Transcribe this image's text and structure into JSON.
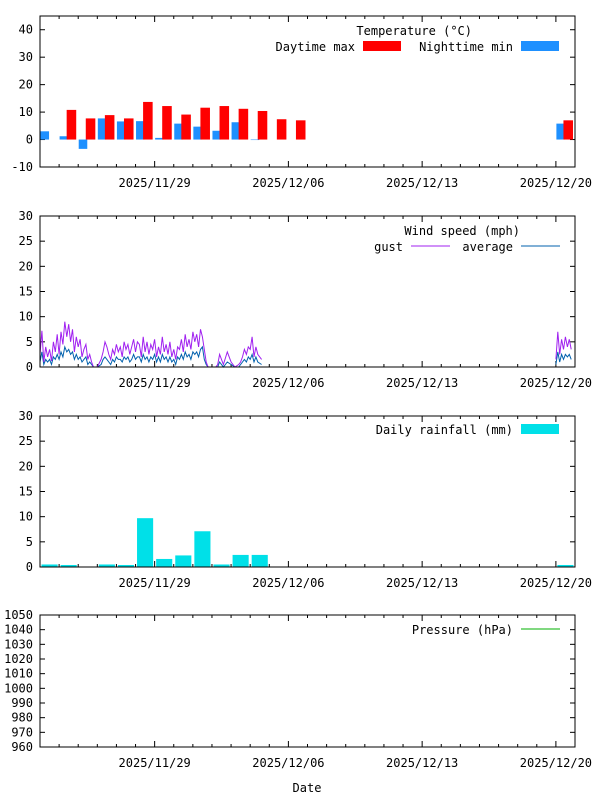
{
  "x_axis": {
    "ticks": [
      "2025/11/29",
      "2025/12/06",
      "2025/12/13",
      "2025/12/20"
    ],
    "label": "Date"
  },
  "colors": {
    "day_max": "#ff0000",
    "night_min": "#1e90ff",
    "gust": "#a020f0",
    "wind_avg": "#0060ad",
    "rain": "#00e0e8",
    "pressure": "#00b000"
  },
  "chart_data": [
    {
      "type": "bar",
      "title": "Temperature (°C)",
      "ylim": [
        -10,
        45
      ],
      "yticks": [
        "40",
        "30",
        "20",
        "10",
        "0",
        "-10"
      ],
      "series": [
        {
          "name": "Daytime max",
          "days": [
            1,
            2,
            3,
            4,
            5,
            6,
            7,
            8,
            9,
            10,
            11,
            12,
            13,
            27
          ],
          "values": [
            10.8,
            7.7,
            8.9,
            7.7,
            13.7,
            12.2,
            9.1,
            11.6,
            12.2,
            11.2,
            10.4,
            7.4,
            7.0,
            7.0
          ]
        },
        {
          "name": "Nighttime min",
          "days": [
            0,
            1,
            2,
            3,
            4,
            5,
            6,
            7,
            8,
            9,
            10,
            11,
            27
          ],
          "values": [
            3.0,
            1.2,
            -3.4,
            7.7,
            6.6,
            6.7,
            0.6,
            5.8,
            4.7,
            3.2,
            6.3,
            0.0,
            5.8
          ]
        }
      ]
    },
    {
      "type": "line",
      "title": "Wind speed (mph)",
      "ylim": [
        0,
        30
      ],
      "yticks": [
        "30",
        "25",
        "20",
        "15",
        "10",
        "5",
        "0"
      ],
      "series": [
        {
          "name": "gust",
          "x": [
            0,
            0.1,
            0.2,
            0.3,
            0.4,
            0.5,
            0.6,
            0.7,
            0.8,
            0.9,
            1.0,
            1.1,
            1.2,
            1.3,
            1.4,
            1.5,
            1.6,
            1.7,
            1.8,
            1.9,
            2.0,
            2.1,
            2.2,
            2.3,
            2.4,
            2.5,
            2.6,
            2.7,
            2.8,
            3.0,
            3.2,
            3.3,
            3.4,
            3.5,
            3.6,
            3.7,
            3.8,
            3.9,
            4.0,
            4.1,
            4.2,
            4.3,
            4.4,
            4.5,
            4.6,
            4.7,
            4.8,
            4.9,
            5.0,
            5.1,
            5.2,
            5.3,
            5.4,
            5.5,
            5.6,
            5.7,
            5.8,
            5.9,
            6.0,
            6.1,
            6.2,
            6.3,
            6.4,
            6.5,
            6.6,
            6.7,
            6.8,
            6.9,
            7.0,
            7.1,
            7.2,
            7.3,
            7.4,
            7.5,
            7.6,
            7.7,
            7.8,
            7.9,
            8.0,
            8.1,
            8.2,
            8.3,
            8.4,
            8.5,
            8.6,
            8.7,
            8.8,
            8.9,
            9.0,
            9.1,
            9.2,
            9.3,
            9.4,
            9.6,
            9.8,
            10.0,
            10.2,
            10.4,
            10.5,
            10.6,
            10.7,
            10.8,
            10.9,
            11.0,
            11.1,
            11.2,
            11.3,
            11.4,
            11.6
          ],
          "values": [
            2.5,
            7.2,
            1.0,
            4.0,
            2.0,
            3.5,
            1.2,
            5.0,
            3.0,
            6.5,
            2.5,
            7.0,
            4.5,
            9.0,
            6.0,
            8.5,
            5.0,
            7.5,
            3.0,
            6.0,
            4.0,
            5.5,
            2.0,
            3.5,
            4.5,
            1.5,
            2.5,
            1.0,
            0.0,
            0.0,
            1.5,
            3.0,
            5.0,
            4.0,
            2.5,
            1.5,
            3.5,
            2.5,
            4.5,
            3.0,
            4.0,
            2.0,
            5.0,
            3.5,
            4.5,
            2.5,
            4.0,
            5.5,
            3.0,
            5.0,
            4.5,
            2.0,
            6.0,
            3.0,
            5.0,
            2.5,
            4.5,
            3.5,
            5.5,
            2.0,
            4.0,
            2.5,
            6.0,
            3.0,
            4.5,
            2.5,
            5.0,
            2.0,
            3.5,
            1.5,
            4.0,
            3.5,
            5.5,
            3.0,
            6.5,
            4.0,
            5.5,
            3.5,
            7.0,
            5.0,
            6.5,
            4.0,
            7.5,
            6.0,
            3.5,
            1.0,
            0.0,
            0.0,
            0.0,
            0.0,
            0.0,
            0.5,
            2.5,
            0.5,
            3.0,
            1.0,
            0.0,
            0.5,
            1.0,
            2.0,
            3.5,
            2.5,
            4.0,
            3.5,
            6.0,
            2.0,
            4.0,
            2.5,
            1.5
          ],
          "segment2": {
            "x": [
              27.0,
              27.1,
              27.2,
              27.3,
              27.4,
              27.5,
              27.6,
              27.7,
              27.8
            ],
            "values": [
              1.5,
              7.0,
              2.5,
              5.5,
              3.5,
              6.0,
              4.0,
              5.5,
              3.5
            ]
          }
        },
        {
          "name": "average",
          "x": [
            0,
            0.1,
            0.2,
            0.3,
            0.4,
            0.5,
            0.6,
            0.7,
            0.8,
            0.9,
            1.0,
            1.1,
            1.2,
            1.3,
            1.4,
            1.5,
            1.6,
            1.7,
            1.8,
            1.9,
            2.0,
            2.1,
            2.2,
            2.3,
            2.4,
            2.5,
            2.6,
            2.7,
            2.8,
            3.0,
            3.2,
            3.3,
            3.4,
            3.5,
            3.6,
            3.7,
            3.8,
            3.9,
            4.0,
            4.1,
            4.2,
            4.3,
            4.4,
            4.5,
            4.6,
            4.7,
            4.8,
            4.9,
            5.0,
            5.1,
            5.2,
            5.3,
            5.4,
            5.5,
            5.6,
            5.7,
            5.8,
            5.9,
            6.0,
            6.1,
            6.2,
            6.3,
            6.4,
            6.5,
            6.6,
            6.7,
            6.8,
            6.9,
            7.0,
            7.1,
            7.2,
            7.3,
            7.4,
            7.5,
            7.6,
            7.7,
            7.8,
            7.9,
            8.0,
            8.1,
            8.2,
            8.3,
            8.4,
            8.5,
            8.6,
            8.7,
            8.8,
            8.9,
            9.0,
            9.1,
            9.2,
            9.3,
            9.4,
            9.6,
            9.8,
            10.0,
            10.2,
            10.4,
            10.5,
            10.6,
            10.7,
            10.8,
            10.9,
            11.0,
            11.1,
            11.2,
            11.3,
            11.4,
            11.6
          ],
          "values": [
            1.0,
            3.0,
            0.5,
            1.5,
            1.0,
            1.5,
            0.5,
            2.0,
            1.5,
            2.5,
            1.5,
            3.0,
            2.0,
            4.0,
            3.0,
            3.5,
            2.5,
            3.0,
            1.5,
            2.5,
            1.5,
            2.0,
            1.0,
            1.5,
            2.0,
            0.5,
            1.0,
            0.5,
            0.0,
            0.0,
            0.5,
            1.5,
            2.0,
            1.5,
            1.0,
            0.5,
            1.5,
            1.0,
            2.0,
            1.5,
            1.5,
            1.0,
            2.0,
            1.5,
            2.0,
            1.0,
            1.5,
            2.5,
            1.5,
            2.0,
            2.0,
            1.0,
            2.5,
            1.5,
            2.0,
            1.0,
            2.0,
            1.5,
            2.5,
            1.0,
            2.0,
            1.0,
            2.5,
            1.5,
            2.0,
            1.0,
            2.0,
            1.0,
            1.5,
            0.5,
            2.0,
            1.5,
            2.5,
            1.5,
            3.0,
            2.0,
            2.5,
            1.5,
            3.0,
            2.5,
            3.0,
            2.0,
            3.5,
            4.0,
            1.5,
            0.5,
            0.0,
            0.0,
            0.0,
            0.0,
            0.0,
            0.0,
            1.0,
            0.0,
            1.0,
            0.5,
            0.0,
            0.0,
            0.5,
            1.0,
            1.5,
            1.0,
            2.0,
            1.5,
            2.5,
            1.0,
            2.0,
            1.0,
            0.5
          ],
          "segment2": {
            "x": [
              27.0,
              27.1,
              27.2,
              27.3,
              27.4,
              27.5,
              27.6,
              27.7,
              27.8
            ],
            "values": [
              0.5,
              3.0,
              1.0,
              2.5,
              1.5,
              2.5,
              2.0,
              2.5,
              1.5
            ]
          }
        }
      ]
    },
    {
      "type": "bar",
      "title": "Daily rainfall (mm)",
      "ylim": [
        0,
        30
      ],
      "yticks": [
        "30",
        "25",
        "20",
        "15",
        "10",
        "5",
        "0"
      ],
      "series": [
        {
          "name": "Daily rainfall (mm)",
          "days": [
            0,
            1,
            3,
            4,
            5,
            6,
            7,
            8,
            9,
            10,
            11,
            27
          ],
          "values": [
            0.5,
            0.4,
            0.5,
            0.4,
            9.7,
            1.6,
            2.3,
            7.1,
            0.5,
            2.4,
            2.4,
            0.4
          ]
        }
      ]
    },
    {
      "type": "line",
      "title": "Pressure (hPa)",
      "ylim": [
        960,
        1050
      ],
      "yticks": [
        "1050",
        "1040",
        "1030",
        "1020",
        "1010",
        "1000",
        "990",
        "980",
        "970",
        "960"
      ],
      "series": [
        {
          "name": "Pressure (hPa)",
          "x": [],
          "values": []
        }
      ]
    }
  ]
}
